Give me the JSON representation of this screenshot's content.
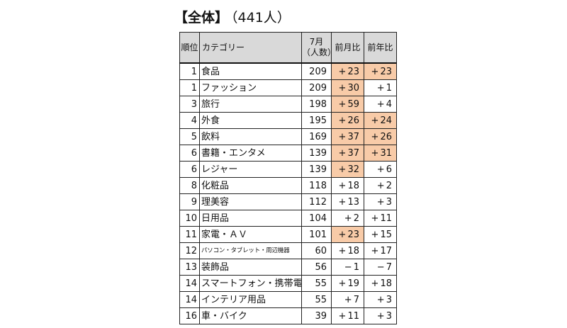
{
  "title": {
    "main": "【全体】",
    "count": "（441人）"
  },
  "headers": {
    "rank": "順位",
    "category": "カテゴリー",
    "count_line1": "7月",
    "count_line2": "（人数）",
    "mom": "前月比",
    "yoy": "前年比"
  },
  "colors": {
    "highlight": "#f8cba8",
    "header_bg": "#d9d9d9"
  },
  "rows": [
    {
      "rank": "1",
      "category": "食品",
      "count": "209",
      "mom_sign": "+",
      "mom": "23",
      "yoy_sign": "+",
      "yoy": "23",
      "mom_hl": true,
      "yoy_hl": true
    },
    {
      "rank": "1",
      "category": "ファッション",
      "count": "209",
      "mom_sign": "+",
      "mom": "30",
      "yoy_sign": "+",
      "yoy": "1",
      "mom_hl": true,
      "yoy_hl": false
    },
    {
      "rank": "3",
      "category": "旅行",
      "count": "198",
      "mom_sign": "+",
      "mom": "59",
      "yoy_sign": "+",
      "yoy": "4",
      "mom_hl": true,
      "yoy_hl": false
    },
    {
      "rank": "4",
      "category": "外食",
      "count": "195",
      "mom_sign": "+",
      "mom": "26",
      "yoy_sign": "+",
      "yoy": "24",
      "mom_hl": true,
      "yoy_hl": true
    },
    {
      "rank": "5",
      "category": "飲料",
      "count": "169",
      "mom_sign": "+",
      "mom": "37",
      "yoy_sign": "+",
      "yoy": "26",
      "mom_hl": true,
      "yoy_hl": true
    },
    {
      "rank": "6",
      "category": "書籍・エンタメ",
      "count": "139",
      "mom_sign": "+",
      "mom": "37",
      "yoy_sign": "+",
      "yoy": "31",
      "mom_hl": true,
      "yoy_hl": true
    },
    {
      "rank": "6",
      "category": "レジャー",
      "count": "139",
      "mom_sign": "+",
      "mom": "32",
      "yoy_sign": "+",
      "yoy": "6",
      "mom_hl": true,
      "yoy_hl": false
    },
    {
      "rank": "8",
      "category": "化粧品",
      "count": "118",
      "mom_sign": "+",
      "mom": "18",
      "yoy_sign": "+",
      "yoy": "2",
      "mom_hl": false,
      "yoy_hl": false
    },
    {
      "rank": "9",
      "category": "理美容",
      "count": "112",
      "mom_sign": "+",
      "mom": "13",
      "yoy_sign": "+",
      "yoy": "3",
      "mom_hl": false,
      "yoy_hl": false
    },
    {
      "rank": "10",
      "category": "日用品",
      "count": "104",
      "mom_sign": "+",
      "mom": "2",
      "yoy_sign": "+",
      "yoy": "11",
      "mom_hl": false,
      "yoy_hl": false
    },
    {
      "rank": "11",
      "category": "家電・ＡＶ",
      "count": "101",
      "mom_sign": "+",
      "mom": "23",
      "yoy_sign": "+",
      "yoy": "15",
      "mom_hl": true,
      "yoy_hl": false
    },
    {
      "rank": "12",
      "category": "パソコン・タブレット・周辺機器",
      "count": "60",
      "mom_sign": "+",
      "mom": "18",
      "yoy_sign": "+",
      "yoy": "17",
      "mom_hl": false,
      "yoy_hl": false,
      "small": true
    },
    {
      "rank": "13",
      "category": "装飾品",
      "count": "56",
      "mom_sign": "−",
      "mom": "1",
      "yoy_sign": "−",
      "yoy": "7",
      "mom_hl": false,
      "yoy_hl": false
    },
    {
      "rank": "14",
      "category": "スマートフォン・携帯電話",
      "count": "55",
      "mom_sign": "+",
      "mom": "19",
      "yoy_sign": "+",
      "yoy": "18",
      "mom_hl": false,
      "yoy_hl": false
    },
    {
      "rank": "14",
      "category": "インテリア用品",
      "count": "55",
      "mom_sign": "+",
      "mom": "7",
      "yoy_sign": "+",
      "yoy": "3",
      "mom_hl": false,
      "yoy_hl": false
    },
    {
      "rank": "16",
      "category": "車・バイク",
      "count": "39",
      "mom_sign": "+",
      "mom": "11",
      "yoy_sign": "+",
      "yoy": "3",
      "mom_hl": false,
      "yoy_hl": false
    }
  ]
}
